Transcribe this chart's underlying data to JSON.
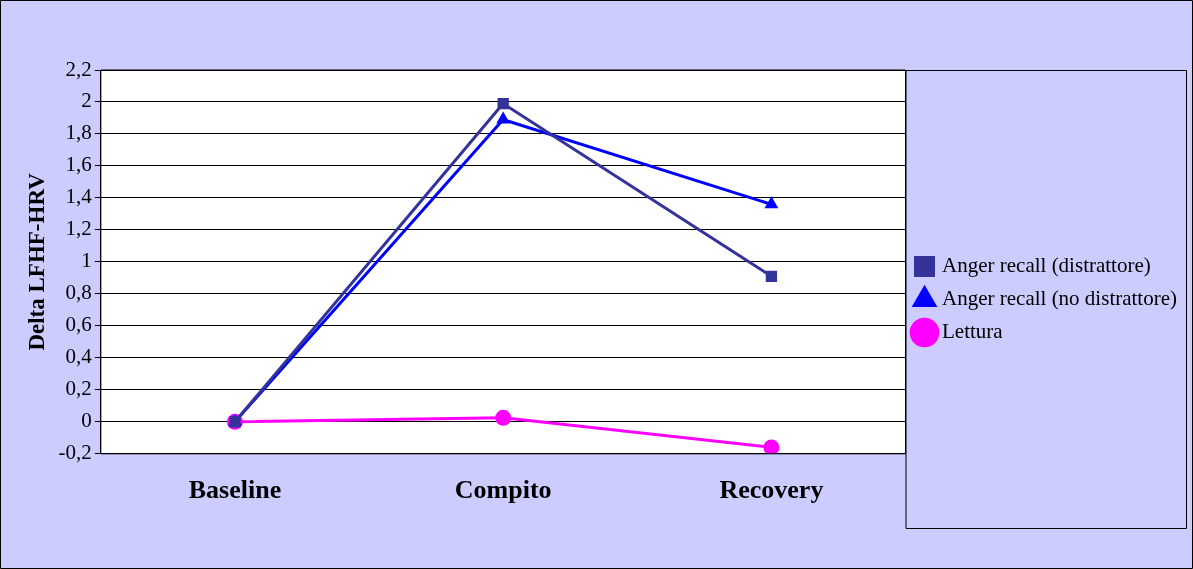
{
  "chart_data": {
    "type": "line",
    "ylabel": "Delta LFHF-HRV",
    "categories": [
      "Baseline",
      "Compito",
      "Recovery"
    ],
    "series": [
      {
        "name": "Anger recall (distrattore)",
        "color": "#333399",
        "marker": "square",
        "values": [
          0,
          1.99,
          0.91
        ]
      },
      {
        "name": "Anger recall (no distrattore)",
        "color": "#0000ff",
        "marker": "triangle",
        "values": [
          0,
          1.89,
          1.36
        ]
      },
      {
        "name": "Lettura",
        "color": "#ff00ff",
        "marker": "circle",
        "values": [
          0,
          0.025,
          -0.16
        ]
      }
    ],
    "ylim": [
      -0.2,
      2.2
    ],
    "yticks": [
      {
        "value": -0.2,
        "label": "-0,2"
      },
      0,
      {
        "value": 0.2,
        "label": "0,2"
      },
      {
        "value": 0.4,
        "label": "0,4"
      },
      {
        "value": 0.6,
        "label": "0,6"
      },
      {
        "value": 0.8,
        "label": "0,8"
      },
      1,
      {
        "value": 1.2,
        "label": "1,2"
      },
      {
        "value": 1.4,
        "label": "1,4"
      },
      {
        "value": 1.6,
        "label": "1,6"
      },
      {
        "value": 1.8,
        "label": "1,8"
      },
      2,
      {
        "value": 2.2,
        "label": "2,2"
      }
    ],
    "grid": "y",
    "legend": "right",
    "line_style": "solid"
  }
}
